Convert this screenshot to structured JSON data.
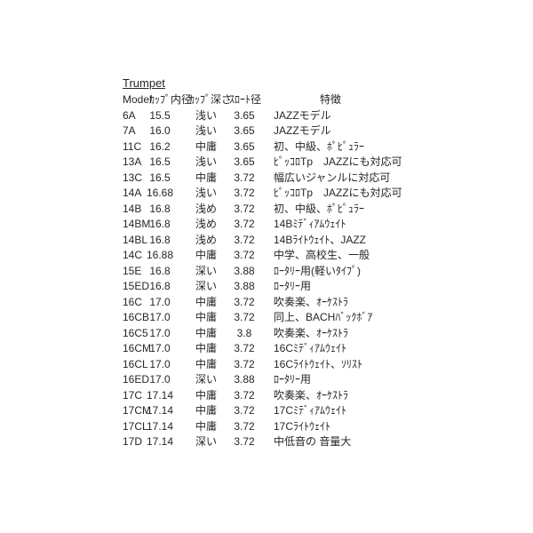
{
  "page": {
    "title": "Trumpet",
    "background_color": "#ffffff",
    "text_color": "#262626"
  },
  "table": {
    "headers": [
      "Model",
      "ｶｯﾌﾟ内径",
      "ｶｯﾌﾟ深さ",
      "ｽﾛｰﾄ径",
      "特徴"
    ],
    "rows": [
      [
        "6A",
        "15.5",
        "浅い",
        "3.65",
        "JAZZモデル"
      ],
      [
        "7A",
        "16.0",
        "浅い",
        "3.65",
        "JAZZモデル"
      ],
      [
        "11C",
        "16.2",
        "中庸",
        "3.65",
        "初、中級、ﾎﾟﾋﾟｭﾗｰ"
      ],
      [
        "13A",
        "16.5",
        "浅い",
        "3.65",
        "ﾋﾟｯｺﾛTp　JAZZにも対応可"
      ],
      [
        "13C",
        "16.5",
        "中庸",
        "3.72",
        "幅広いジャンルに対応可"
      ],
      [
        "14A",
        "16.68",
        "浅い",
        "3.72",
        "ﾋﾟｯｺﾛTp　JAZZにも対応可"
      ],
      [
        "14B",
        "16.8",
        "浅め",
        "3.72",
        "初、中級、ﾎﾟﾋﾟｭﾗｰ"
      ],
      [
        "14BM",
        "16.8",
        "浅め",
        "3.72",
        "14Bﾐﾃﾞｨｱﾑｳｪｲﾄ"
      ],
      [
        "14BL",
        "16.8",
        "浅め",
        "3.72",
        "14Bﾗｲﾄｳｪｲﾄ、JAZZ"
      ],
      [
        "14C",
        "16.88",
        "中庸",
        "3.72",
        "中学、高校生、一般"
      ],
      [
        "15E",
        "16.8",
        "深い",
        "3.88",
        "ﾛｰﾀﾘｰ用(軽いﾀｲﾌﾟ)"
      ],
      [
        "15ED",
        "16.8",
        "深い",
        "3.88",
        "ﾛｰﾀﾘｰ用"
      ],
      [
        "16C",
        "17.0",
        "中庸",
        "3.72",
        "吹奏楽、ｵｰｹｽﾄﾗ"
      ],
      [
        "16CB",
        "17.0",
        "中庸",
        "3.72",
        "同上、BACHﾊﾞｯｸﾎﾞｱ"
      ],
      [
        "16C5",
        "17.0",
        "中庸",
        "3.8",
        "吹奏楽、ｵｰｹｽﾄﾗ"
      ],
      [
        "16CM",
        "17.0",
        "中庸",
        "3.72",
        "16Cﾐﾃﾞｨｱﾑｳｪｲﾄ"
      ],
      [
        "16CL",
        "17.0",
        "中庸",
        "3.72",
        "16Cﾗｲﾄｳｪｲﾄ、ｿﾘｽﾄ"
      ],
      [
        "16ED",
        "17.0",
        "深い",
        "3.88",
        "ﾛｰﾀﾘｰ用"
      ],
      [
        "17C",
        "17.14",
        "中庸",
        "3.72",
        "吹奏楽、ｵｰｹｽﾄﾗ"
      ],
      [
        "17CM",
        "17.14",
        "中庸",
        "3.72",
        "17Cﾐﾃﾞｨｱﾑｳｪｲﾄ"
      ],
      [
        "17CL",
        "17.14",
        "中庸",
        "3.72",
        "17Cﾗｲﾄｳｪｲﾄ"
      ],
      [
        "17D",
        "17.14",
        "深い",
        "3.72",
        "中低音の 音量大"
      ]
    ]
  }
}
